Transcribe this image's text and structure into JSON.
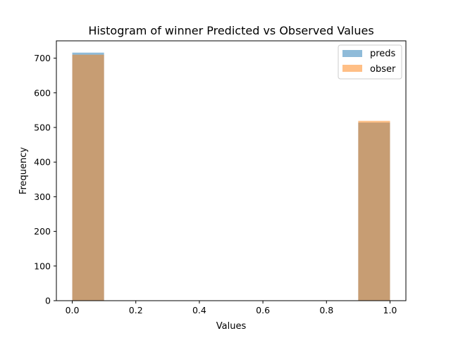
{
  "chart_data": {
    "type": "bar",
    "subtype": "overlaid-histogram",
    "title": "Histogram of winner Predicted vs Observed Values",
    "xlabel": "Values",
    "ylabel": "Frequency",
    "xlim": [
      -0.05,
      1.05
    ],
    "ylim": [
      0,
      750
    ],
    "xticks": [
      0.0,
      0.2,
      0.4,
      0.6,
      0.8,
      1.0
    ],
    "xtick_labels": [
      "0.0",
      "0.2",
      "0.4",
      "0.6",
      "0.8",
      "1.0"
    ],
    "yticks": [
      0,
      100,
      200,
      300,
      400,
      500,
      600,
      700
    ],
    "ytick_labels": [
      "0",
      "100",
      "200",
      "300",
      "400",
      "500",
      "600",
      "700"
    ],
    "grid": false,
    "legend_position": "top-right",
    "bins": [
      {
        "start": 0.0,
        "end": 0.1
      },
      {
        "start": 0.9,
        "end": 1.0
      }
    ],
    "series": [
      {
        "name": "preds",
        "color": "#1f77b4",
        "opacity": 0.5,
        "values": [
          716,
          514
        ]
      },
      {
        "name": "obser",
        "color": "#ff7f0e",
        "opacity": 0.5,
        "values": [
          710,
          519
        ]
      }
    ]
  }
}
